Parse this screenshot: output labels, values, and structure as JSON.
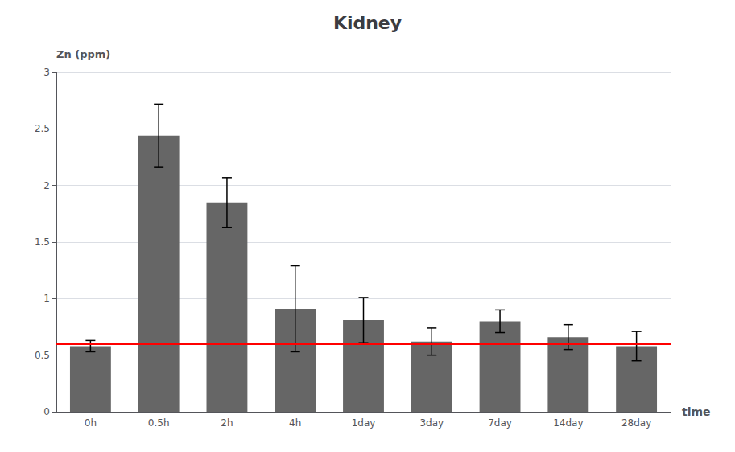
{
  "chart_data": {
    "type": "bar",
    "title": "Kidney",
    "ylabel": "Zn (ppm)",
    "xlabel": "time",
    "categories": [
      "0h",
      "0.5h",
      "2h",
      "4h",
      "1day",
      "3day",
      "7day",
      "14day",
      "28day"
    ],
    "values": [
      0.58,
      2.44,
      1.85,
      0.91,
      0.81,
      0.62,
      0.8,
      0.66,
      0.58
    ],
    "errors": [
      0.05,
      0.28,
      0.22,
      0.38,
      0.2,
      0.12,
      0.1,
      0.11,
      0.13
    ],
    "color": "#666666",
    "reference_line": {
      "y": 0.6,
      "color": "#ff0000"
    },
    "ylim": [
      0,
      3
    ],
    "yticks": [
      0,
      0.5,
      1,
      1.5,
      2,
      2.5,
      3
    ],
    "grid": true
  }
}
